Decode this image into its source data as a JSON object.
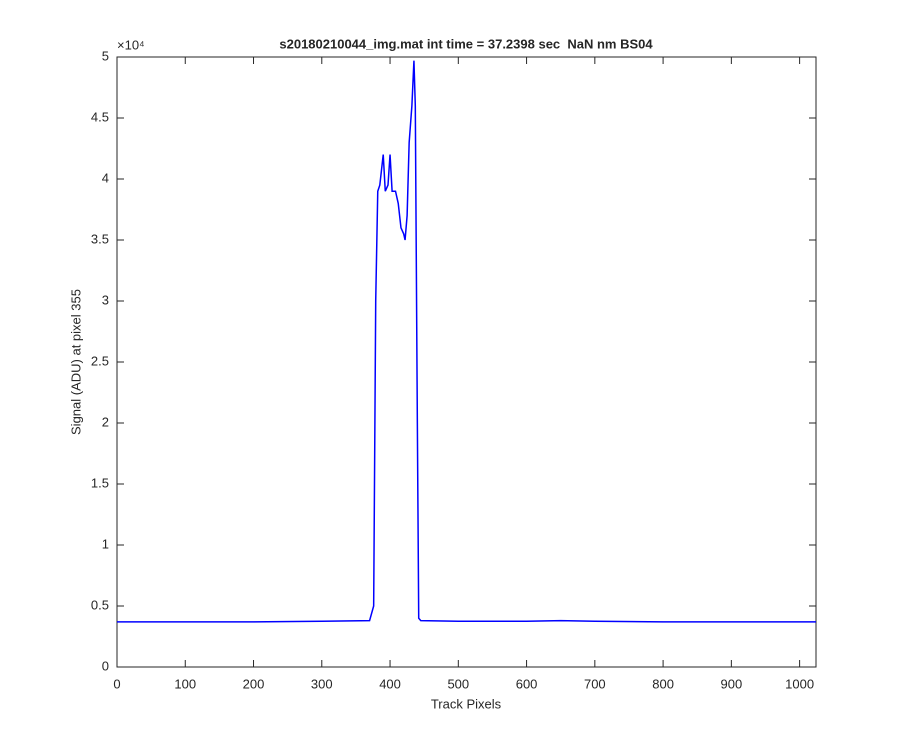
{
  "chart_data": {
    "type": "line",
    "title": "s20180210044_img.mat int time = 37.2398 sec  NaN nm BS04",
    "x_label": "Track Pixels",
    "y_label": "Signal (ADU) at pixel 355",
    "y_multiplier": "×10⁴",
    "x": [
      0,
      100,
      200,
      300,
      370,
      376,
      379,
      382,
      385,
      388,
      390,
      393,
      397,
      400,
      403,
      408,
      412,
      416,
      420,
      422,
      425,
      428,
      432,
      435,
      437,
      440,
      442,
      445,
      500,
      600,
      650,
      700,
      800,
      900,
      1024
    ],
    "series": [
      {
        "name": "Signal",
        "color": "#0000ff",
        "values": [
          0.37,
          0.37,
          0.37,
          0.375,
          0.38,
          0.5,
          3.0,
          3.9,
          3.95,
          4.1,
          4.2,
          3.9,
          3.95,
          4.2,
          3.9,
          3.9,
          3.8,
          3.6,
          3.55,
          3.5,
          3.7,
          4.3,
          4.6,
          4.97,
          4.6,
          2.0,
          0.4,
          0.38,
          0.375,
          0.375,
          0.38,
          0.375,
          0.37,
          0.37,
          0.37
        ]
      }
    ],
    "xlim": [
      0,
      1024
    ],
    "xticks": [
      0,
      100,
      200,
      300,
      400,
      500,
      600,
      700,
      800,
      900,
      1000
    ],
    "ylim": [
      0,
      5
    ],
    "yticks": [
      0,
      0.5,
      1,
      1.5,
      2,
      2.5,
      3,
      3.5,
      4,
      4.5,
      5
    ],
    "grid": false
  }
}
